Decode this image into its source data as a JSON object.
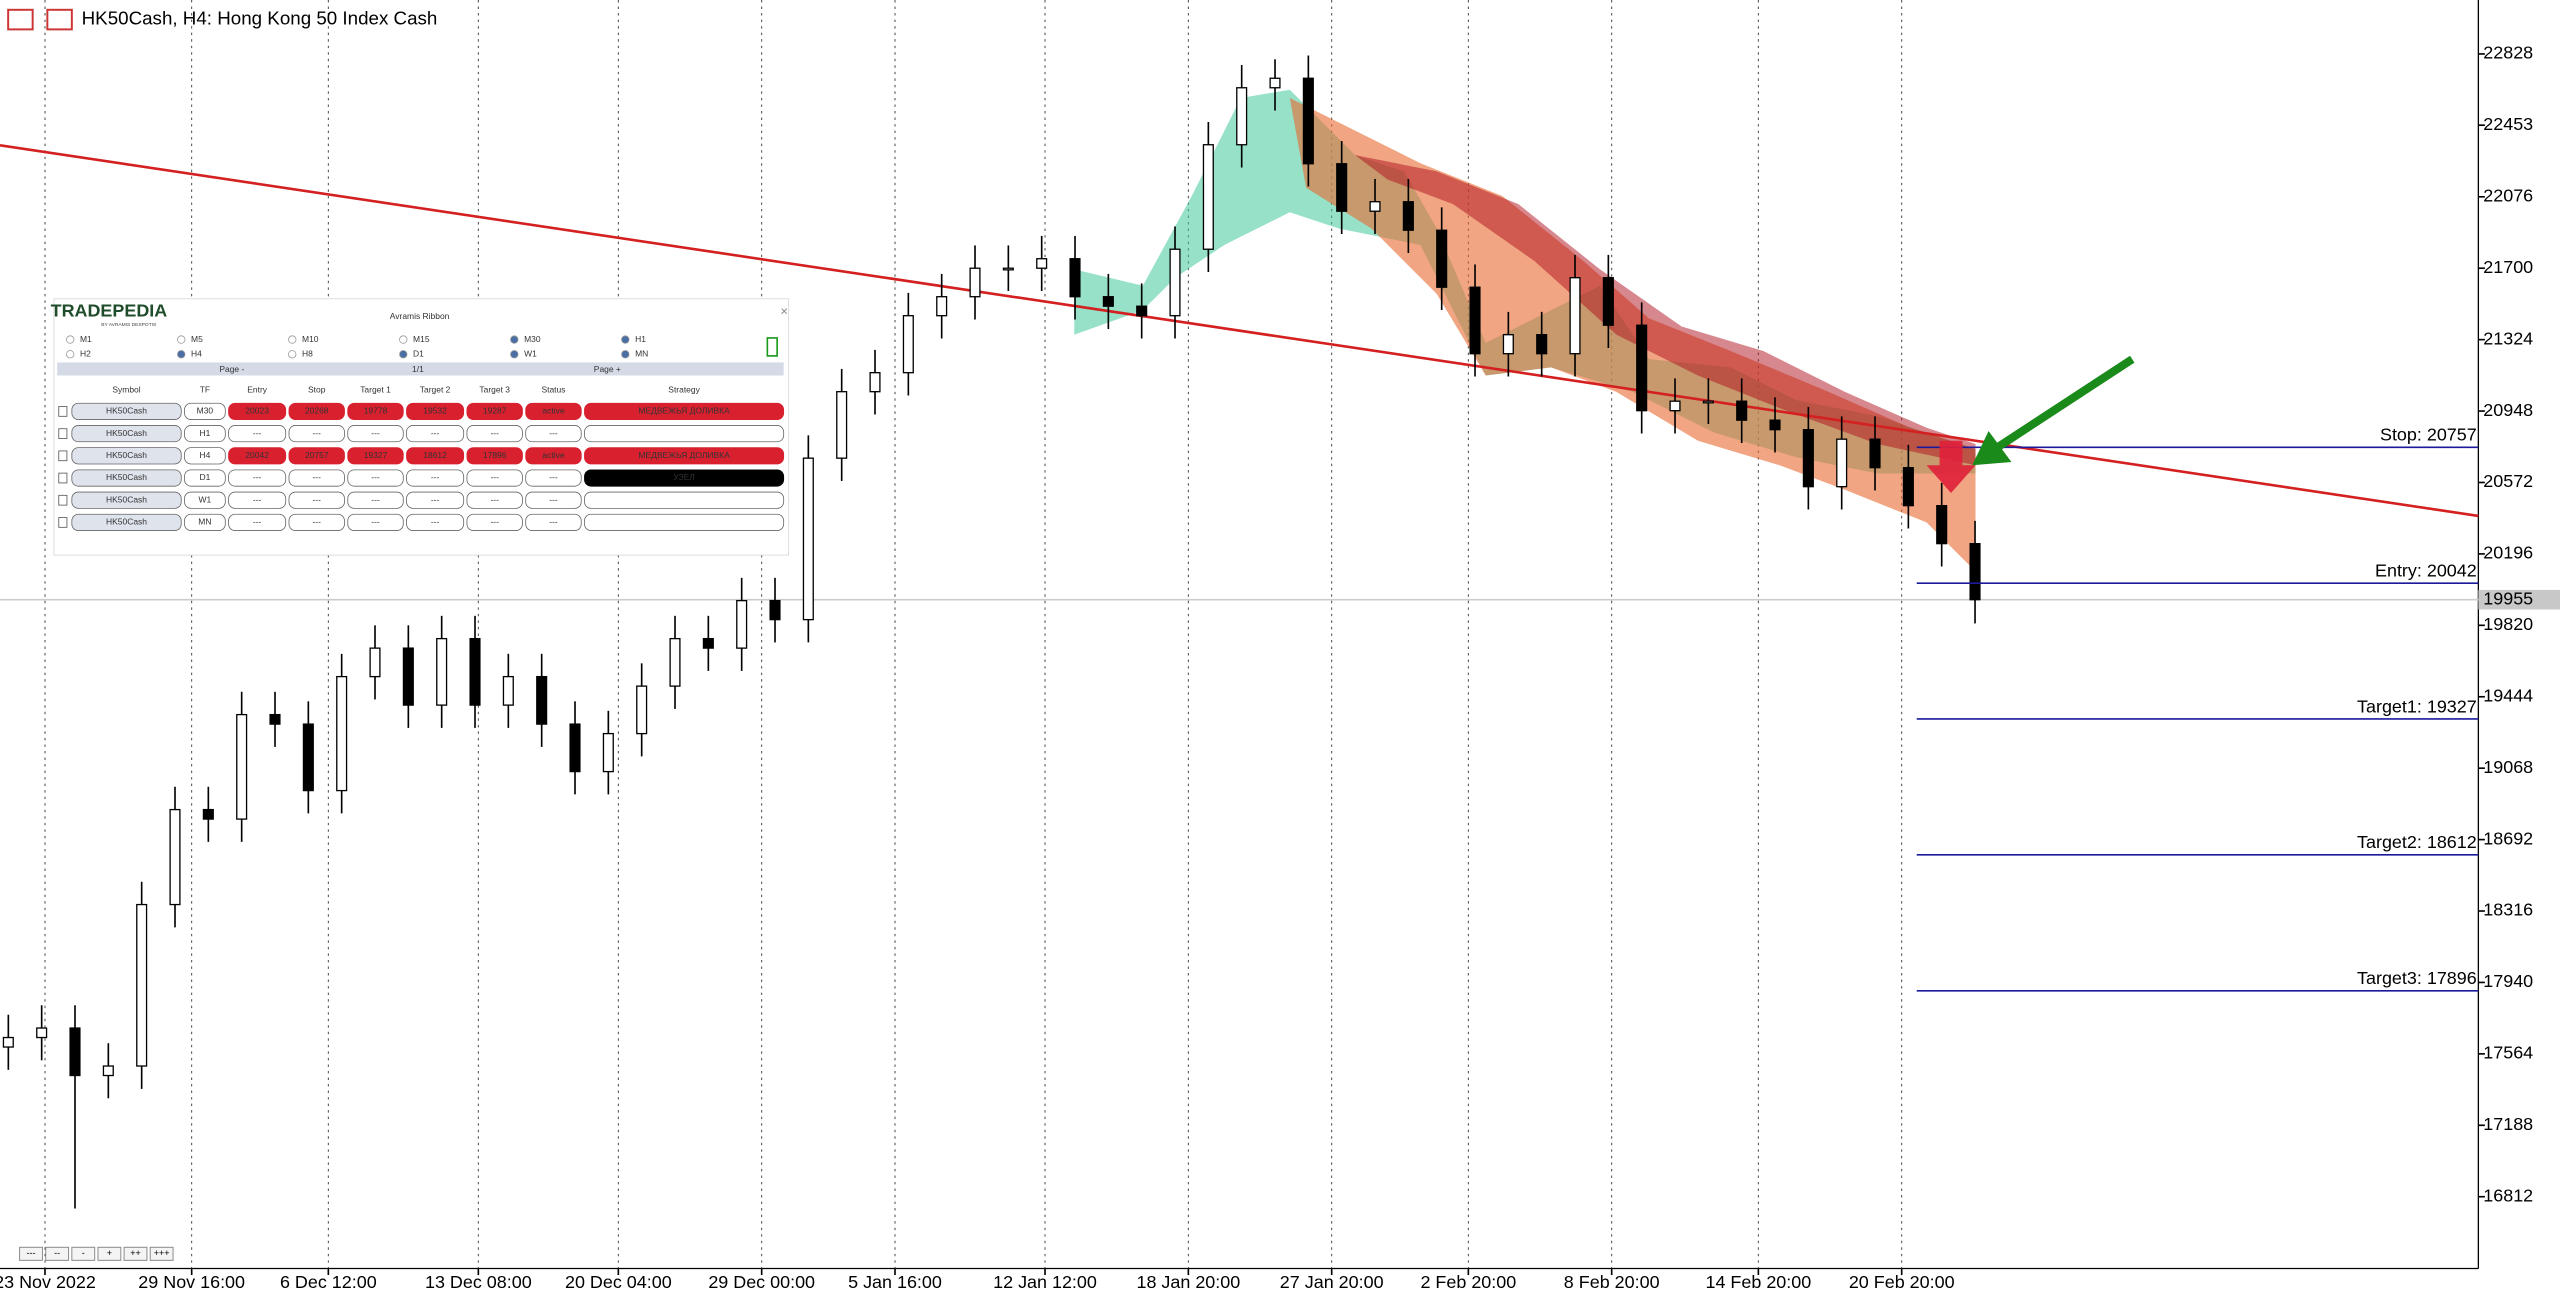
{
  "window": {
    "title": "HK50Cash, H4:  Hong Kong 50 Index Cash",
    "zoom_buttons": [
      "---",
      "--",
      "-",
      "+",
      "++",
      "+++"
    ]
  },
  "chart_data": {
    "type": "candlestick",
    "open": [
      17600,
      17650,
      17700,
      17450,
      17500,
      18350,
      18850,
      18800,
      19350,
      19300,
      18950,
      19550,
      19700,
      19400,
      19750,
      19400,
      19550,
      19300,
      19050,
      19250,
      19500,
      19750,
      19700,
      19950,
      19850,
      20700,
      21050,
      21150,
      21450,
      21550,
      21700,
      21700,
      21750,
      21550,
      21500,
      21450,
      21800,
      22350,
      22650,
      22700,
      22250,
      22000,
      22050,
      21900,
      21600,
      21250,
      21350,
      21250,
      21650,
      21400,
      20950,
      21000,
      21000,
      20900,
      20850,
      20550,
      20800,
      20650,
      20450,
      20250
    ],
    "high": [
      17770,
      17820,
      17820,
      17620,
      18470,
      18970,
      18970,
      19470,
      19470,
      19420,
      19670,
      19820,
      19820,
      19870,
      19870,
      19670,
      19670,
      19420,
      19370,
      19620,
      19870,
      19870,
      20070,
      20070,
      20820,
      21170,
      21270,
      21570,
      21670,
      21820,
      21820,
      21870,
      21870,
      21670,
      21620,
      21920,
      22470,
      22770,
      22800,
      22820,
      22370,
      22170,
      22170,
      22020,
      21720,
      21470,
      21470,
      21770,
      21770,
      21520,
      21120,
      21120,
      21120,
      21020,
      20970,
      20920,
      20920,
      20770,
      20570,
      20370
    ],
    "low": [
      17480,
      17530,
      16750,
      17330,
      17380,
      18230,
      18680,
      18680,
      19180,
      18830,
      18830,
      19430,
      19280,
      19280,
      19280,
      19280,
      19180,
      18930,
      18930,
      19130,
      19380,
      19580,
      19580,
      19730,
      19730,
      20580,
      20930,
      21030,
      21330,
      21430,
      21580,
      21580,
      21430,
      21380,
      21330,
      21330,
      21680,
      22230,
      22530,
      22130,
      21880,
      21880,
      21780,
      21480,
      21130,
      21130,
      21130,
      21130,
      21280,
      20830,
      20830,
      20880,
      20780,
      20730,
      20430,
      20430,
      20530,
      20330,
      20130,
      19830
    ],
    "close": [
      17650,
      17700,
      17450,
      17500,
      18350,
      18850,
      18800,
      19350,
      19300,
      18950,
      19550,
      19700,
      19400,
      19750,
      19400,
      19550,
      19300,
      19050,
      19250,
      19500,
      19750,
      19700,
      19950,
      19850,
      20700,
      21050,
      21150,
      21450,
      21550,
      21700,
      21700,
      21750,
      21550,
      21500,
      21450,
      21800,
      22350,
      22650,
      22700,
      22250,
      22000,
      22050,
      21900,
      21600,
      21250,
      21350,
      21250,
      21650,
      21400,
      20950,
      21000,
      21000,
      20900,
      20850,
      20550,
      20800,
      20650,
      20450,
      20250,
      19955
    ],
    "up_color": "#ffffff",
    "down_color": "#000000",
    "xlim": [
      -0.25,
      74.1
    ],
    "xticks": [
      {
        "value": 1.1,
        "label": "23 Nov 2022"
      },
      {
        "value": 5.5,
        "label": "29 Nov 16:00"
      },
      {
        "value": 9.6,
        "label": "6 Dec 12:00"
      },
      {
        "value": 14.1,
        "label": "13 Dec 08:00"
      },
      {
        "value": 18.3,
        "label": "20 Dec 04:00"
      },
      {
        "value": 22.6,
        "label": "29 Dec 00:00"
      },
      {
        "value": 26.6,
        "label": "5 Jan 16:00"
      },
      {
        "value": 31.1,
        "label": "12 Jan 12:00"
      },
      {
        "value": 35.4,
        "label": "18 Jan 20:00"
      },
      {
        "value": 39.7,
        "label": "27 Jan 20:00"
      },
      {
        "value": 43.8,
        "label": "2 Feb 20:00"
      },
      {
        "value": 48.1,
        "label": "8 Feb 20:00"
      },
      {
        "value": 52.5,
        "label": "14 Feb 20:00"
      },
      {
        "value": 56.8,
        "label": "20 Feb 20:00"
      }
    ],
    "ylim": [
      16434,
      23112
    ],
    "yticks": [
      22828,
      22453,
      22076,
      21700,
      21324,
      20948,
      20572,
      20196,
      19820,
      19444,
      19068,
      18692,
      18316,
      17940,
      17564,
      17188,
      16812
    ],
    "current_price": 19955,
    "trendline": {
      "values": [
        22347,
        20396
      ],
      "color": "#d42020"
    },
    "levels": [
      {
        "label": "Stop: 20757",
        "value": 20757
      },
      {
        "label": "Entry: 20042",
        "value": 20042
      },
      {
        "label": "Target1: 19327",
        "value": 19327
      },
      {
        "label": "Target2: 18612",
        "value": 18612
      },
      {
        "label": "Target3: 17896",
        "value": 17896
      }
    ],
    "level_color": "#1a1a9a"
  },
  "panel": {
    "logo": "TRADEPEDIA",
    "logo_sub": "BY AVRAMIS DESPOTIS",
    "title": "Avramis Ribbon",
    "timeframes": [
      {
        "label": "M1",
        "checked": false
      },
      {
        "label": "M5",
        "checked": false
      },
      {
        "label": "M10",
        "checked": false
      },
      {
        "label": "M15",
        "checked": false
      },
      {
        "label": "M30",
        "checked": true
      },
      {
        "label": "H1",
        "checked": true
      },
      {
        "label": "H2",
        "checked": false
      },
      {
        "label": "H4",
        "checked": true
      },
      {
        "label": "H8",
        "checked": false
      },
      {
        "label": "D1",
        "checked": true
      },
      {
        "label": "W1",
        "checked": true
      },
      {
        "label": "MN",
        "checked": true
      }
    ],
    "pager": [
      "Page -",
      "1/1",
      "Page +"
    ],
    "headers": [
      "Symbol",
      "TF",
      "Entry",
      "Stop",
      "Target 1",
      "Target 2",
      "Target 3",
      "Status",
      "Strategy"
    ],
    "rows": [
      {
        "cells": [
          "HK50Cash",
          "M30",
          20023,
          20268,
          19778,
          19532,
          19287,
          "active",
          "МЕДВЕЖЬЯ ДОЛИВКА"
        ],
        "fill": "#d9202f",
        "strategy_fill": "#d9202f"
      },
      {
        "cells": [
          "HK50Cash",
          "H1",
          "---",
          "---",
          "---",
          "---",
          "---",
          "---",
          ""
        ],
        "fill": null,
        "strategy_fill": null
      },
      {
        "cells": [
          "HK50Cash",
          "H4",
          20042,
          20757,
          19327,
          18612,
          17896,
          "active",
          "МЕДВЕЖЬЯ ДОЛИВКА"
        ],
        "fill": "#d9202f",
        "strategy_fill": "#d9202f"
      },
      {
        "cells": [
          "HK50Cash",
          "D1",
          "---",
          "---",
          "---",
          "---",
          "---",
          "---",
          "УЗЕЛ"
        ],
        "fill": null,
        "strategy_fill": "#000000"
      },
      {
        "cells": [
          "HK50Cash",
          "W1",
          "---",
          "---",
          "---",
          "---",
          "---",
          "---",
          ""
        ],
        "fill": null,
        "strategy_fill": null
      },
      {
        "cells": [
          "HK50Cash",
          "MN",
          "---",
          "---",
          "---",
          "---",
          "---",
          "---",
          ""
        ],
        "fill": null,
        "strategy_fill": null
      }
    ]
  }
}
